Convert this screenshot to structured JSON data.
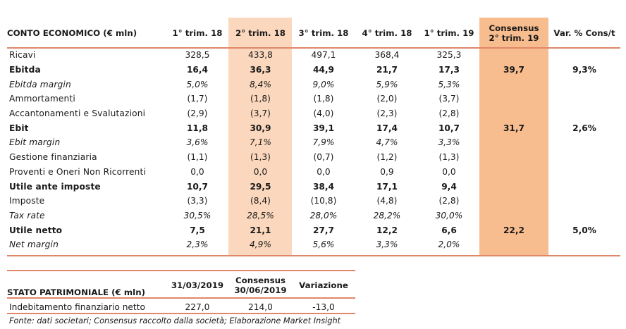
{
  "conto": {
    "headers": [
      "CONTO ECONOMICO (€ mln)",
      "1° trim. 18",
      "2° trim. 18",
      "3° trim. 18",
      "4° trim. 18",
      "1° trim. 19",
      "Consensus",
      "2° trim. 19",
      "Var. % Cons/t"
    ],
    "rows": [
      {
        "label": "Ricavi",
        "q1_18": "328,5",
        "q2_18": "433,8",
        "q3_18": "497,1",
        "q4_18": "368,4",
        "q1_19": "325,3",
        "cons": "",
        "var": ""
      },
      {
        "label": "Ebitda",
        "q1_18": "16,4",
        "q2_18": "36,3",
        "q3_18": "44,9",
        "q4_18": "21,7",
        "q1_19": "17,3",
        "cons": "39,7",
        "var": "9,3%"
      },
      {
        "label": "Ebitda margin",
        "q1_18": "5,0%",
        "q2_18": "8,4%",
        "q3_18": "9,0%",
        "q4_18": "5,9%",
        "q1_19": "5,3%",
        "cons": "",
        "var": ""
      },
      {
        "label": "Ammortamenti",
        "q1_18": "(1,7)",
        "q2_18": "(1,8)",
        "q3_18": "(1,8)",
        "q4_18": "(2,0)",
        "q1_19": "(3,7)",
        "cons": "",
        "var": ""
      },
      {
        "label": "Accantonamenti e Svalutazioni",
        "q1_18": "(2,9)",
        "q2_18": "(3,7)",
        "q3_18": "(4,0)",
        "q4_18": "(2,3)",
        "q1_19": "(2,8)",
        "cons": "",
        "var": ""
      },
      {
        "label": "Ebit",
        "q1_18": "11,8",
        "q2_18": "30,9",
        "q3_18": "39,1",
        "q4_18": "17,4",
        "q1_19": "10,7",
        "cons": "31,7",
        "var": "2,6%"
      },
      {
        "label": "Ebit margin",
        "q1_18": "3,6%",
        "q2_18": "7,1%",
        "q3_18": "7,9%",
        "q4_18": "4,7%",
        "q1_19": "3,3%",
        "cons": "",
        "var": ""
      },
      {
        "label": "Gestione finanziaria",
        "q1_18": "(1,1)",
        "q2_18": "(1,3)",
        "q3_18": "(0,7)",
        "q4_18": "(1,2)",
        "q1_19": "(1,3)",
        "cons": "",
        "var": ""
      },
      {
        "label": "Proventi e Oneri Non Ricorrenti",
        "q1_18": "0,0",
        "q2_18": "0,0",
        "q3_18": "0,0",
        "q4_18": "0,9",
        "q1_19": "0,0",
        "cons": "",
        "var": ""
      },
      {
        "label": "Utile ante imposte",
        "q1_18": "10,7",
        "q2_18": "29,5",
        "q3_18": "38,4",
        "q4_18": "17,1",
        "q1_19": "9,4",
        "cons": "",
        "var": ""
      },
      {
        "label": "Imposte",
        "q1_18": "(3,3)",
        "q2_18": "(8,4)",
        "q3_18": "(10,8)",
        "q4_18": "(4,8)",
        "q1_19": "(2,8)",
        "cons": "",
        "var": ""
      },
      {
        "label": "Tax rate",
        "q1_18": "30,5%",
        "q2_18": "28,5%",
        "q3_18": "28,0%",
        "q4_18": "28,2%",
        "q1_19": "30,0%",
        "cons": "",
        "var": ""
      },
      {
        "label": "Utile netto",
        "q1_18": "7,5",
        "q2_18": "21,1",
        "q3_18": "27,7",
        "q4_18": "12,2",
        "q1_19": "6,6",
        "cons": "22,2",
        "var": "5,0%"
      },
      {
        "label": "Net margin",
        "q1_18": "2,3%",
        "q2_18": "4,9%",
        "q3_18": "5,6%",
        "q4_18": "3,3%",
        "q1_19": "2,0%",
        "cons": "",
        "var": ""
      }
    ]
  },
  "stato": {
    "headers": [
      "STATO PATRIMONIALE (€ mln)",
      "31/03/2019",
      "Consensus",
      "30/06/2019",
      "Variazione"
    ],
    "rows": [
      {
        "label": "Indebitamento finanziario netto",
        "v1": "227,0",
        "v2": "214,0",
        "v3": "-13,0"
      }
    ]
  },
  "source": "Fonte: dati societari; Consensus raccolto dalla società; Elaborazione Market Insight"
}
